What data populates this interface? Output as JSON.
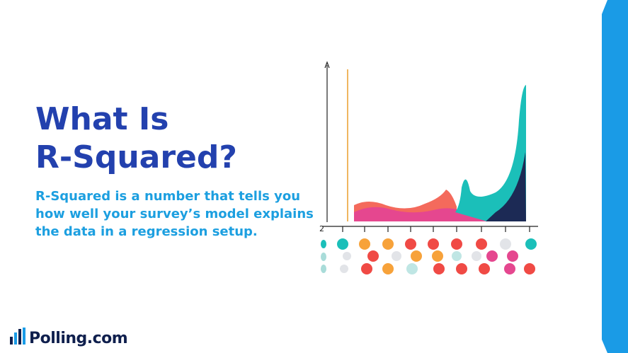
{
  "slide": {
    "title_lines": [
      "What Is",
      "R-Squared?"
    ],
    "body_lines": [
      "R-Squared is a number that tells you",
      "how well your survey’s model explains",
      "the data in a regression setup."
    ],
    "logo_text": "Polling.com",
    "chart_glyph": "2"
  }
}
